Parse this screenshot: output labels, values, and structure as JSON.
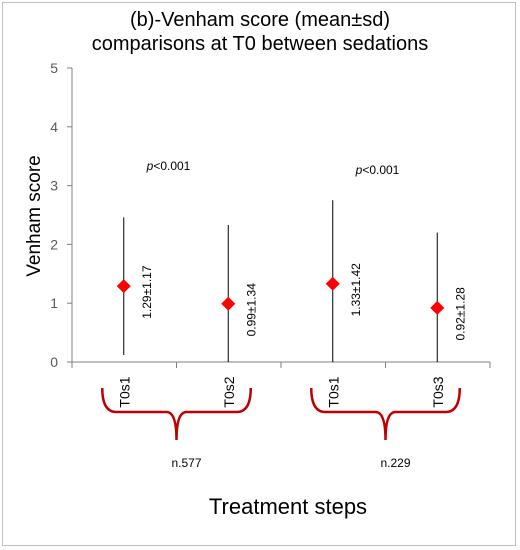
{
  "chart_data": {
    "type": "scatter",
    "title_lines": [
      "(b)-Venham score (mean±sd)",
      "comparisons at T0 between sedations"
    ],
    "ylabel": "Venham score",
    "xlabel": "Treatment steps",
    "ylim": [
      0,
      5
    ],
    "yticks": [
      "0",
      "1",
      "2",
      "3",
      "4",
      "5"
    ],
    "categories": [
      "T0s1",
      "T0s2",
      "T0s1",
      "T0s3"
    ],
    "means": [
      1.29,
      0.99,
      1.33,
      0.92
    ],
    "sds": [
      1.17,
      1.34,
      1.42,
      1.28
    ],
    "data_labels": [
      "1.29±1.17",
      "0.99±1.34",
      "1.33±1.42",
      "0.92±1.28"
    ],
    "marker_color": "#ff0000",
    "errorbar_color": "#000000",
    "bracket_color": "#c00000",
    "groups": [
      {
        "p_prefix": "p",
        "p_suffix": "<0.001",
        "n_label": "n.577"
      },
      {
        "p_prefix": "p",
        "p_suffix": "<0.001",
        "n_label": "n.229"
      }
    ],
    "grid": false,
    "legend": "none"
  }
}
